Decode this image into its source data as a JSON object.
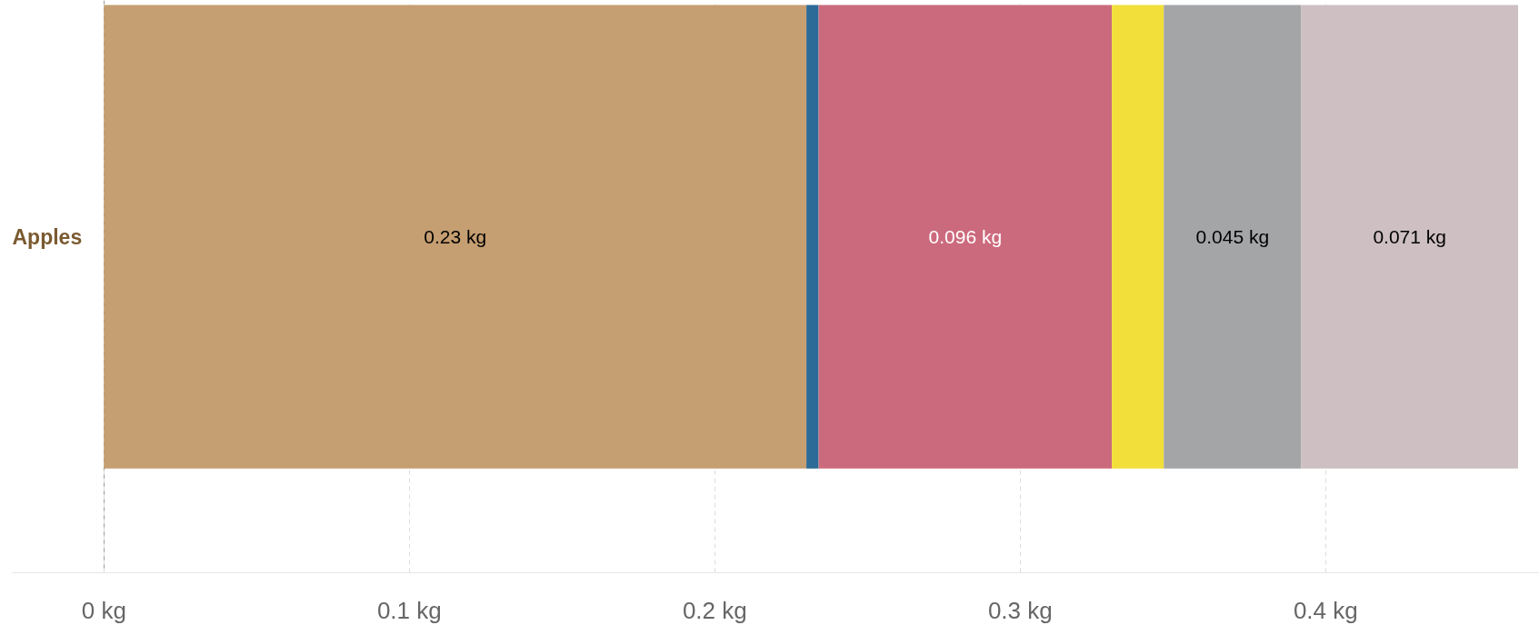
{
  "chart_data": {
    "type": "bar",
    "orientation": "horizontal",
    "stacked": true,
    "categories": [
      "Apples"
    ],
    "series": [
      {
        "color": "#c59e71",
        "values": [
          0.23
        ],
        "value_labels": [
          "0.23 kg"
        ]
      },
      {
        "color": "#2c6a97",
        "values": [
          0.004
        ],
        "value_labels": [
          null
        ]
      },
      {
        "color": "#cc6a7d",
        "values": [
          0.096
        ],
        "value_labels": [
          "0.096 kg"
        ]
      },
      {
        "color": "#f2df3a",
        "values": [
          0.017
        ],
        "value_labels": [
          null
        ]
      },
      {
        "color": "#a4a5a7",
        "values": [
          0.045
        ],
        "value_labels": [
          "0.045 kg"
        ]
      },
      {
        "color": "#cdbfc2",
        "values": [
          0.071
        ],
        "value_labels": [
          "0.071 kg"
        ]
      }
    ],
    "xlim": [
      -0.03,
      0.47
    ],
    "xticks": [
      {
        "value": 0,
        "label": "0 kg"
      },
      {
        "value": 0.1,
        "label": "0.1 kg"
      },
      {
        "value": 0.2,
        "label": "0.2 kg"
      },
      {
        "value": 0.3,
        "label": "0.3 kg"
      },
      {
        "value": 0.4,
        "label": "0.4 kg"
      }
    ],
    "grid": "x"
  }
}
